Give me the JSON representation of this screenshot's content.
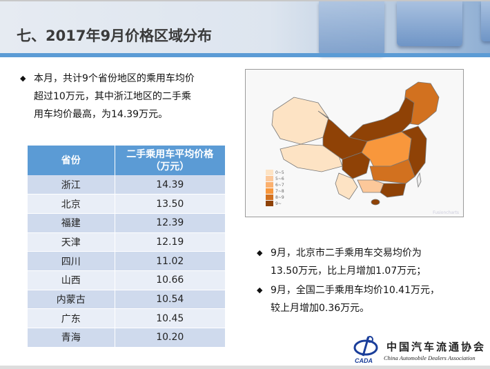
{
  "title": "七、2017年9月价格区域分布",
  "intro": {
    "bullet": "◆",
    "lines": [
      "本月，共计9个省份地区的乘用车均价",
      "超过10万元，其中浙江地区的二手乘",
      "用车均价最高，为14.39万元。"
    ]
  },
  "table": {
    "headers": [
      "省份",
      "二手乘用车平均价格",
      "（万元）"
    ],
    "rows": [
      [
        "浙江",
        "14.39"
      ],
      [
        "北京",
        "13.50"
      ],
      [
        "福建",
        "12.39"
      ],
      [
        "天津",
        "12.19"
      ],
      [
        "四川",
        "11.02"
      ],
      [
        "山西",
        "10.66"
      ],
      [
        "内蒙古",
        "10.54"
      ],
      [
        "广东",
        "10.45"
      ],
      [
        "青海",
        "10.20"
      ]
    ]
  },
  "map": {
    "legend": [
      {
        "label": "0~5",
        "color": "#fde3c4"
      },
      {
        "label": "5~6",
        "color": "#fcc89a"
      },
      {
        "label": "6~7",
        "color": "#fbb06e"
      },
      {
        "label": "7~8",
        "color": "#f8973c"
      },
      {
        "label": "8~9",
        "color": "#d2711f"
      },
      {
        "label": "9~",
        "color": "#8f4206"
      }
    ],
    "watermark": "Fusioncharts"
  },
  "notes": {
    "bullet": "◆",
    "items": [
      [
        "9月，北京市二手乘用车交易均价为",
        "13.50万元，比上月增加1.07万元；"
      ],
      [
        "9月，全国二手乘用车均价10.41万元，",
        "较上月增加0.36万元。"
      ]
    ]
  },
  "logo": {
    "cn": "中国汽车流通协会",
    "en": "China Automobile Dealers Association",
    "abbr": "CADA"
  },
  "colors": {
    "header_stripe": "#5b9bd5",
    "table_header": "#5b9bd5",
    "row_odd": "#cfdaed",
    "row_even": "#e9eef7"
  }
}
